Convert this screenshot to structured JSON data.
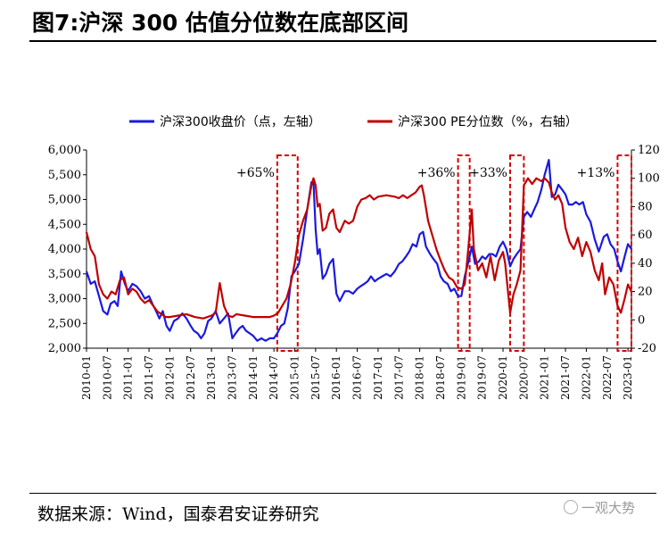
{
  "title": "图7:沪深 300 估值分位数在底部区间",
  "source": "数据来源：Wind，国泰君安证券研究",
  "watermark": "一观大势",
  "colors": {
    "index_line": "#1a1adf",
    "pe_line": "#c00000",
    "highlight_box": "#d40000"
  },
  "chart_data": {
    "type": "line",
    "x_labels": [
      "2010-01",
      "2010-07",
      "2011-01",
      "2011-07",
      "2012-01",
      "2012-07",
      "2013-01",
      "2013-07",
      "2014-01",
      "2014-07",
      "2015-01",
      "2015-07",
      "2016-01",
      "2016-07",
      "2017-01",
      "2017-07",
      "2018-01",
      "2018-07",
      "2019-01",
      "2019-07",
      "2020-01",
      "2020-07",
      "2021-01",
      "2021-07",
      "2022-01",
      "2022-07",
      "2023-01"
    ],
    "x_start": 2010.0,
    "x_end": 2023.083,
    "left_axis": {
      "label": "沪深300收盘价（点，左轴）",
      "min": 2000,
      "max": 6000,
      "ticks": [
        "2,000",
        "2,500",
        "3,000",
        "3,500",
        "4,000",
        "4,500",
        "5,000",
        "5,500",
        "6,000"
      ]
    },
    "right_axis": {
      "label": "沪深300 PE分位数（%，右轴）",
      "min": -20,
      "max": 120,
      "ticks": [
        "-20",
        "0",
        "20",
        "40",
        "60",
        "80",
        "100",
        "120"
      ]
    },
    "series": [
      {
        "name": "沪深300收盘价（点，左轴）",
        "axis": "left",
        "color": "#1a1adf",
        "points": [
          [
            2010.0,
            3550
          ],
          [
            2010.1,
            3300
          ],
          [
            2010.2,
            3350
          ],
          [
            2010.3,
            3050
          ],
          [
            2010.4,
            2750
          ],
          [
            2010.5,
            2680
          ],
          [
            2010.58,
            2900
          ],
          [
            2010.67,
            2950
          ],
          [
            2010.75,
            2850
          ],
          [
            2010.83,
            3550
          ],
          [
            2010.92,
            3300
          ],
          [
            2011.0,
            3150
          ],
          [
            2011.1,
            3300
          ],
          [
            2011.2,
            3250
          ],
          [
            2011.3,
            3150
          ],
          [
            2011.4,
            3000
          ],
          [
            2011.5,
            3050
          ],
          [
            2011.58,
            2900
          ],
          [
            2011.67,
            2750
          ],
          [
            2011.75,
            2600
          ],
          [
            2011.83,
            2750
          ],
          [
            2011.92,
            2450
          ],
          [
            2012.0,
            2350
          ],
          [
            2012.1,
            2550
          ],
          [
            2012.2,
            2600
          ],
          [
            2012.3,
            2700
          ],
          [
            2012.4,
            2600
          ],
          [
            2012.5,
            2450
          ],
          [
            2012.58,
            2350
          ],
          [
            2012.67,
            2300
          ],
          [
            2012.75,
            2200
          ],
          [
            2012.83,
            2300
          ],
          [
            2012.92,
            2550
          ],
          [
            2013.0,
            2600
          ],
          [
            2013.1,
            2750
          ],
          [
            2013.2,
            2500
          ],
          [
            2013.3,
            2600
          ],
          [
            2013.4,
            2700
          ],
          [
            2013.5,
            2200
          ],
          [
            2013.58,
            2300
          ],
          [
            2013.67,
            2400
          ],
          [
            2013.75,
            2450
          ],
          [
            2013.83,
            2350
          ],
          [
            2013.92,
            2300
          ],
          [
            2014.0,
            2250
          ],
          [
            2014.1,
            2150
          ],
          [
            2014.2,
            2200
          ],
          [
            2014.3,
            2150
          ],
          [
            2014.4,
            2200
          ],
          [
            2014.5,
            2200
          ],
          [
            2014.58,
            2300
          ],
          [
            2014.67,
            2450
          ],
          [
            2014.75,
            2500
          ],
          [
            2014.83,
            2800
          ],
          [
            2014.92,
            3450
          ],
          [
            2015.0,
            3550
          ],
          [
            2015.1,
            3700
          ],
          [
            2015.2,
            4200
          ],
          [
            2015.3,
            4800
          ],
          [
            2015.4,
            5350
          ],
          [
            2015.45,
            5350
          ],
          [
            2015.5,
            4400
          ],
          [
            2015.55,
            3900
          ],
          [
            2015.6,
            4000
          ],
          [
            2015.67,
            3400
          ],
          [
            2015.75,
            3500
          ],
          [
            2015.83,
            3700
          ],
          [
            2015.92,
            3800
          ],
          [
            2016.0,
            3100
          ],
          [
            2016.08,
            2950
          ],
          [
            2016.2,
            3150
          ],
          [
            2016.3,
            3150
          ],
          [
            2016.4,
            3100
          ],
          [
            2016.5,
            3200
          ],
          [
            2016.58,
            3250
          ],
          [
            2016.67,
            3300
          ],
          [
            2016.75,
            3350
          ],
          [
            2016.83,
            3450
          ],
          [
            2016.92,
            3350
          ],
          [
            2017.0,
            3400
          ],
          [
            2017.1,
            3450
          ],
          [
            2017.2,
            3500
          ],
          [
            2017.3,
            3450
          ],
          [
            2017.4,
            3550
          ],
          [
            2017.5,
            3700
          ],
          [
            2017.58,
            3750
          ],
          [
            2017.67,
            3850
          ],
          [
            2017.75,
            3950
          ],
          [
            2017.83,
            4100
          ],
          [
            2017.92,
            4050
          ],
          [
            2018.0,
            4300
          ],
          [
            2018.08,
            4350
          ],
          [
            2018.15,
            4050
          ],
          [
            2018.25,
            3900
          ],
          [
            2018.33,
            3800
          ],
          [
            2018.42,
            3700
          ],
          [
            2018.5,
            3450
          ],
          [
            2018.58,
            3350
          ],
          [
            2018.67,
            3300
          ],
          [
            2018.75,
            3150
          ],
          [
            2018.83,
            3200
          ],
          [
            2018.92,
            3050
          ],
          [
            2019.0,
            3050
          ],
          [
            2019.08,
            3450
          ],
          [
            2019.17,
            3750
          ],
          [
            2019.25,
            4050
          ],
          [
            2019.33,
            3700
          ],
          [
            2019.42,
            3750
          ],
          [
            2019.5,
            3850
          ],
          [
            2019.58,
            3800
          ],
          [
            2019.67,
            3900
          ],
          [
            2019.75,
            3900
          ],
          [
            2019.83,
            3850
          ],
          [
            2019.92,
            4050
          ],
          [
            2020.0,
            4150
          ],
          [
            2020.08,
            4000
          ],
          [
            2020.17,
            3650
          ],
          [
            2020.25,
            3800
          ],
          [
            2020.33,
            3900
          ],
          [
            2020.42,
            4000
          ],
          [
            2020.5,
            4650
          ],
          [
            2020.58,
            4750
          ],
          [
            2020.67,
            4650
          ],
          [
            2020.75,
            4800
          ],
          [
            2020.83,
            4950
          ],
          [
            2020.92,
            5200
          ],
          [
            2021.0,
            5500
          ],
          [
            2021.1,
            5800
          ],
          [
            2021.17,
            5050
          ],
          [
            2021.25,
            5100
          ],
          [
            2021.33,
            5300
          ],
          [
            2021.42,
            5200
          ],
          [
            2021.5,
            5100
          ],
          [
            2021.58,
            4900
          ],
          [
            2021.67,
            4900
          ],
          [
            2021.75,
            4950
          ],
          [
            2021.83,
            4900
          ],
          [
            2021.92,
            4950
          ],
          [
            2022.0,
            4700
          ],
          [
            2022.1,
            4550
          ],
          [
            2022.2,
            4200
          ],
          [
            2022.3,
            3950
          ],
          [
            2022.42,
            4250
          ],
          [
            2022.5,
            4300
          ],
          [
            2022.58,
            4100
          ],
          [
            2022.67,
            4000
          ],
          [
            2022.75,
            3750
          ],
          [
            2022.83,
            3550
          ],
          [
            2022.92,
            3850
          ],
          [
            2023.0,
            4100
          ],
          [
            2023.083,
            4000
          ]
        ]
      },
      {
        "name": "沪深300 PE分位数（%，右轴）",
        "axis": "right",
        "color": "#c00000",
        "points": [
          [
            2010.0,
            62
          ],
          [
            2010.1,
            50
          ],
          [
            2010.2,
            45
          ],
          [
            2010.3,
            25
          ],
          [
            2010.4,
            18
          ],
          [
            2010.5,
            15
          ],
          [
            2010.6,
            20
          ],
          [
            2010.7,
            18
          ],
          [
            2010.8,
            28
          ],
          [
            2010.9,
            30
          ],
          [
            2011.0,
            18
          ],
          [
            2011.1,
            22
          ],
          [
            2011.2,
            20
          ],
          [
            2011.3,
            15
          ],
          [
            2011.4,
            12
          ],
          [
            2011.5,
            14
          ],
          [
            2011.6,
            10
          ],
          [
            2011.7,
            6
          ],
          [
            2011.8,
            4
          ],
          [
            2011.9,
            2
          ],
          [
            2012.0,
            2
          ],
          [
            2012.2,
            3
          ],
          [
            2012.4,
            4
          ],
          [
            2012.6,
            2
          ],
          [
            2012.8,
            1
          ],
          [
            2013.0,
            3
          ],
          [
            2013.1,
            5
          ],
          [
            2013.2,
            26
          ],
          [
            2013.3,
            10
          ],
          [
            2013.4,
            3
          ],
          [
            2013.5,
            2
          ],
          [
            2013.6,
            4
          ],
          [
            2013.8,
            3
          ],
          [
            2014.0,
            2
          ],
          [
            2014.2,
            2
          ],
          [
            2014.4,
            2
          ],
          [
            2014.5,
            3
          ],
          [
            2014.6,
            5
          ],
          [
            2014.7,
            10
          ],
          [
            2014.8,
            15
          ],
          [
            2014.9,
            25
          ],
          [
            2015.0,
            40
          ],
          [
            2015.1,
            60
          ],
          [
            2015.2,
            70
          ],
          [
            2015.3,
            78
          ],
          [
            2015.4,
            95
          ],
          [
            2015.45,
            100
          ],
          [
            2015.5,
            95
          ],
          [
            2015.55,
            80
          ],
          [
            2015.6,
            82
          ],
          [
            2015.67,
            63
          ],
          [
            2015.75,
            65
          ],
          [
            2015.83,
            75
          ],
          [
            2015.92,
            78
          ],
          [
            2016.0,
            65
          ],
          [
            2016.08,
            62
          ],
          [
            2016.2,
            70
          ],
          [
            2016.3,
            68
          ],
          [
            2016.4,
            70
          ],
          [
            2016.5,
            80
          ],
          [
            2016.6,
            85
          ],
          [
            2016.7,
            86
          ],
          [
            2016.8,
            88
          ],
          [
            2016.9,
            85
          ],
          [
            2017.0,
            87
          ],
          [
            2017.2,
            88
          ],
          [
            2017.4,
            87
          ],
          [
            2017.5,
            86
          ],
          [
            2017.6,
            88
          ],
          [
            2017.7,
            86
          ],
          [
            2017.8,
            88
          ],
          [
            2017.9,
            90
          ],
          [
            2018.0,
            94
          ],
          [
            2018.05,
            95
          ],
          [
            2018.1,
            88
          ],
          [
            2018.2,
            70
          ],
          [
            2018.3,
            60
          ],
          [
            2018.4,
            50
          ],
          [
            2018.5,
            42
          ],
          [
            2018.6,
            35
          ],
          [
            2018.7,
            30
          ],
          [
            2018.8,
            28
          ],
          [
            2018.9,
            23
          ],
          [
            2019.0,
            22
          ],
          [
            2019.08,
            25
          ],
          [
            2019.15,
            45
          ],
          [
            2019.25,
            78
          ],
          [
            2019.3,
            50
          ],
          [
            2019.4,
            35
          ],
          [
            2019.5,
            40
          ],
          [
            2019.6,
            30
          ],
          [
            2019.7,
            45
          ],
          [
            2019.8,
            28
          ],
          [
            2019.9,
            42
          ],
          [
            2020.0,
            48
          ],
          [
            2020.05,
            40
          ],
          [
            2020.12,
            20
          ],
          [
            2020.17,
            5
          ],
          [
            2020.25,
            18
          ],
          [
            2020.33,
            25
          ],
          [
            2020.42,
            35
          ],
          [
            2020.5,
            95
          ],
          [
            2020.6,
            100
          ],
          [
            2020.7,
            96
          ],
          [
            2020.8,
            100
          ],
          [
            2020.92,
            98
          ],
          [
            2021.0,
            100
          ],
          [
            2021.1,
            97
          ],
          [
            2021.17,
            90
          ],
          [
            2021.25,
            85
          ],
          [
            2021.33,
            88
          ],
          [
            2021.42,
            82
          ],
          [
            2021.5,
            65
          ],
          [
            2021.6,
            55
          ],
          [
            2021.7,
            50
          ],
          [
            2021.8,
            58
          ],
          [
            2021.9,
            45
          ],
          [
            2022.0,
            55
          ],
          [
            2022.1,
            48
          ],
          [
            2022.2,
            35
          ],
          [
            2022.3,
            28
          ],
          [
            2022.38,
            40
          ],
          [
            2022.45,
            18
          ],
          [
            2022.55,
            30
          ],
          [
            2022.65,
            25
          ],
          [
            2022.75,
            10
          ],
          [
            2022.83,
            5
          ],
          [
            2022.92,
            15
          ],
          [
            2023.0,
            25
          ],
          [
            2023.083,
            20
          ]
        ]
      }
    ],
    "highlight_periods": [
      {
        "label": "+65%",
        "start": 2014.58,
        "end": 2015.07
      },
      {
        "label": "+36%",
        "start": 2018.92,
        "end": 2019.2
      },
      {
        "label": "+33%",
        "start": 2020.17,
        "end": 2020.5
      },
      {
        "label": "+13%",
        "start": 2022.75,
        "end": 2023.083
      }
    ]
  }
}
